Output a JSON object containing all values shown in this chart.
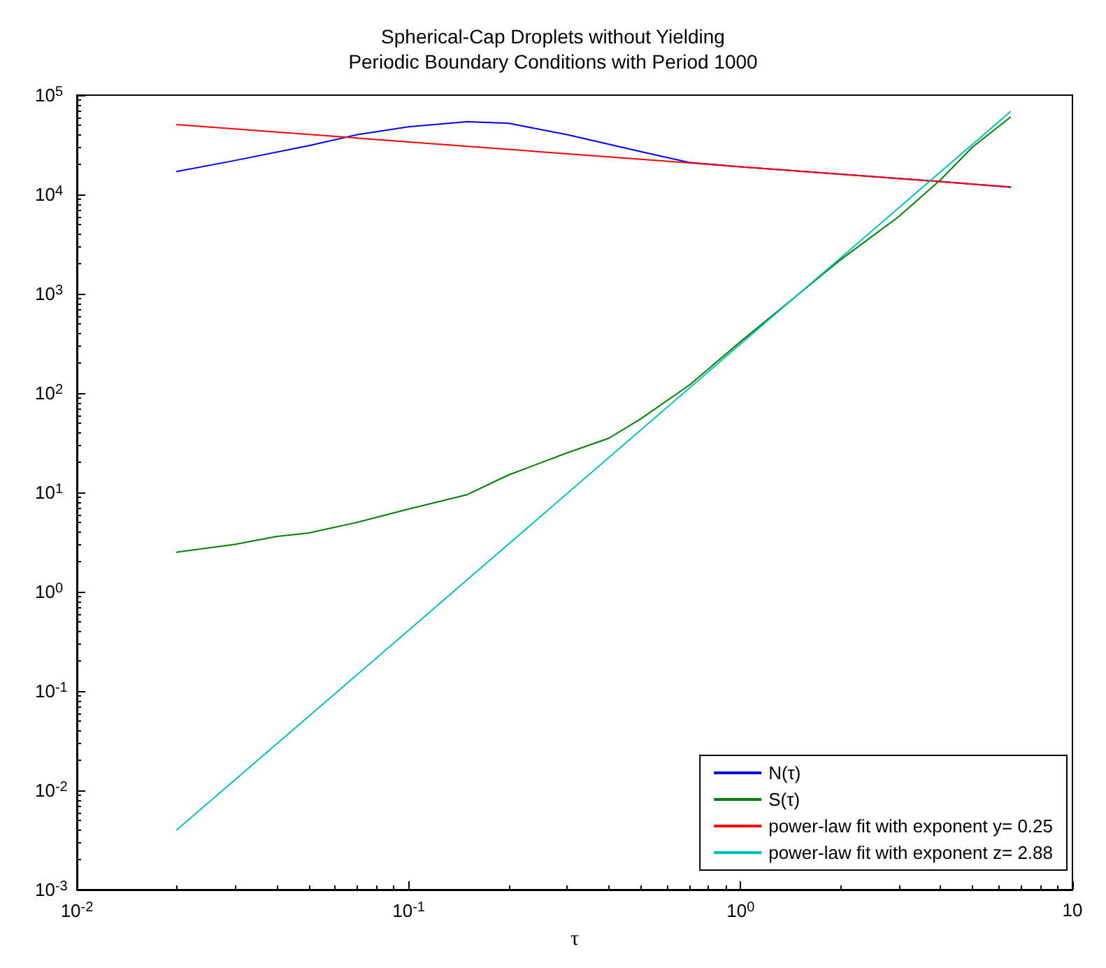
{
  "chart_data": {
    "type": "line",
    "title": "Spherical-Cap Droplets without Yielding",
    "subtitle": "Periodic Boundary Conditions with Period 1000",
    "xlabel": "τ",
    "log": "xy",
    "xlim": [
      0.01,
      10
    ],
    "ylim": [
      0.001,
      100000
    ],
    "xticks": [
      {
        "value": 0.01,
        "label": "10$^{-2}$"
      },
      {
        "value": 0.1,
        "label": "10$^{-1}$"
      },
      {
        "value": 1,
        "label": "10$^{0}$"
      },
      10
    ],
    "yticks": [
      {
        "value": 0.001,
        "label": "10$^{-3}$"
      },
      {
        "value": 0.01,
        "label": "10$^{-2}$"
      },
      {
        "value": 0.1,
        "label": "10$^{-1}$"
      },
      {
        "value": 1,
        "label": "10$^{0}$"
      },
      {
        "value": 10,
        "label": "10$^{1}$"
      },
      {
        "value": 100,
        "label": "10$^{2}$"
      },
      {
        "value": 1000,
        "label": "10$^{3}$"
      },
      {
        "value": 10000,
        "label": "10$^{4}$"
      },
      {
        "value": 100000,
        "label": "10$^{5}$"
      }
    ],
    "grid": false,
    "legend": "bottom right",
    "marker": "none",
    "line_style": "solid",
    "series": [
      {
        "name": "N(τ)",
        "color": "#0000ff",
        "x": [
          0.02,
          0.03,
          0.05,
          0.07,
          0.1,
          0.15,
          0.2,
          0.3,
          0.5,
          0.7,
          1,
          2,
          4,
          6.5
        ],
        "values": [
          17000,
          22000,
          31000,
          40000,
          48000,
          54000,
          52000,
          40000,
          27000,
          21000,
          19000,
          16000,
          13500,
          11800
        ]
      },
      {
        "name": "S(τ)",
        "color": "#008000",
        "x": [
          0.02,
          0.03,
          0.04,
          0.05,
          0.07,
          0.1,
          0.15,
          0.2,
          0.3,
          0.4,
          0.5,
          0.7,
          1,
          1.5,
          2,
          3,
          4,
          5,
          6.5
        ],
        "values": [
          2.5,
          3,
          3.6,
          3.9,
          5,
          6.8,
          9.5,
          15,
          25,
          35,
          55,
          120,
          330,
          1000,
          2200,
          6000,
          14000,
          30000,
          60000
        ]
      },
      {
        "name": "power-law fit with exponent y= 0.25",
        "color": "#ff0000",
        "x": [
          0.02,
          0.1,
          1,
          6.5
        ],
        "values": [
          50500,
          33800,
          19000,
          11900
        ]
      },
      {
        "name": "power-law fit with exponent z= 2.88",
        "color": "#00bfbf",
        "x": [
          0.02,
          0.1,
          1,
          6.5
        ],
        "values": [
          0.004,
          0.41,
          313,
          68000
        ]
      }
    ]
  }
}
